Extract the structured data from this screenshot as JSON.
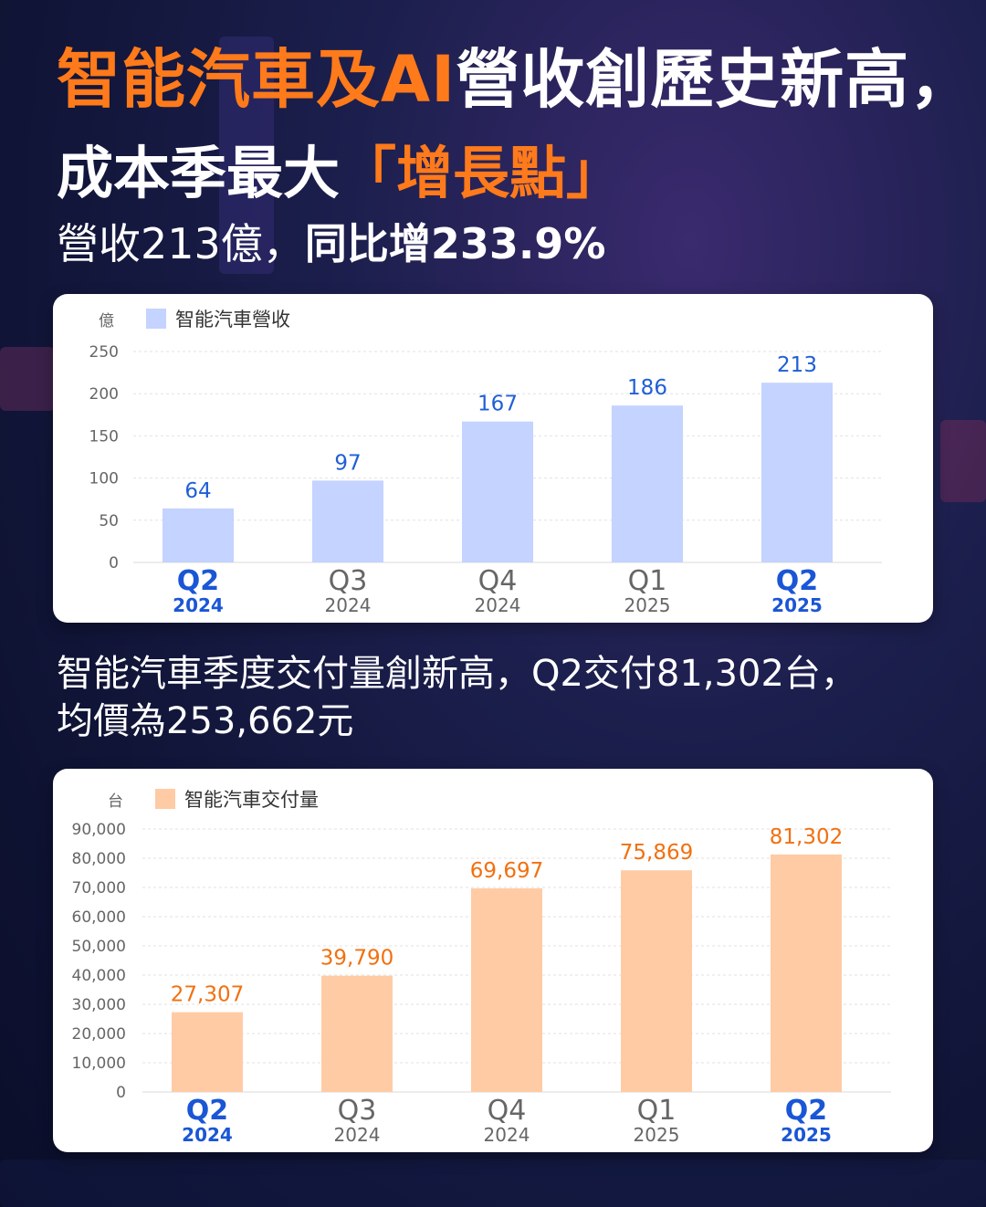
{
  "headline": {
    "line1_orange": "智能汽車及AI",
    "line1_white": "營收創歷史新高，",
    "line2_white": "成本季最大",
    "line2_orange": "「增長點」",
    "line3_light": "營收213億，",
    "line3_bold": "同比增233.9%"
  },
  "subtitle2": {
    "line1": "智能汽車季度交付量創新高，Q2交付81,302台，",
    "line2": "均價為253,662元"
  },
  "colors": {
    "accent_orange": "#ff7a1a",
    "revenue_bar": "#c4d3ff",
    "revenue_label": "#1f5fd6",
    "delivery_bar": "#ffcba5",
    "delivery_label": "#f2700f",
    "highlight_tick": "#1a56d6",
    "muted_tick": "#666666"
  },
  "chart_data": [
    {
      "type": "bar",
      "unit": "億",
      "legend": "智能汽車營收",
      "categories": [
        "Q2",
        "Q3",
        "Q4",
        "Q1",
        "Q2"
      ],
      "years": [
        "2024",
        "2024",
        "2024",
        "2025",
        "2025"
      ],
      "highlight": [
        true,
        false,
        false,
        false,
        true
      ],
      "values": [
        64,
        97,
        167,
        186,
        213
      ],
      "value_labels": [
        "64",
        "97",
        "167",
        "186",
        "213"
      ],
      "ylim": [
        0,
        250
      ],
      "yticks": [
        "0",
        "50",
        "100",
        "150",
        "200",
        "250"
      ],
      "grid": true
    },
    {
      "type": "bar",
      "unit": "台",
      "legend": "智能汽車交付量",
      "categories": [
        "Q2",
        "Q3",
        "Q4",
        "Q1",
        "Q2"
      ],
      "years": [
        "2024",
        "2024",
        "2024",
        "2025",
        "2025"
      ],
      "highlight": [
        true,
        false,
        false,
        false,
        true
      ],
      "values": [
        27307,
        39790,
        69697,
        75869,
        81302
      ],
      "value_labels": [
        "27,307",
        "39,790",
        "69,697",
        "75,869",
        "81,302"
      ],
      "ylim": [
        0,
        90000
      ],
      "yticks": [
        "0",
        "10,000",
        "20,000",
        "30,000",
        "40,000",
        "50,000",
        "60,000",
        "70,000",
        "80,000",
        "90,000"
      ],
      "grid": true
    }
  ]
}
